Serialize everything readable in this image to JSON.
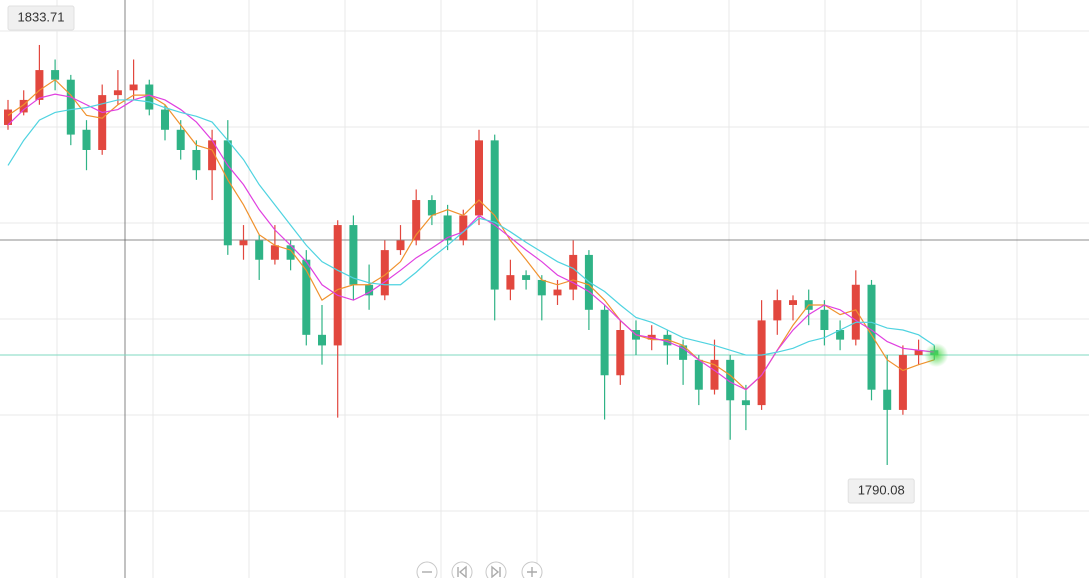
{
  "chart_data": {
    "type": "candlestick",
    "ylim": [
      1778.34,
      1838.38
    ],
    "grid": true,
    "up_color": "#e2473e",
    "down_color": "#2fb386",
    "open": [
      1825.4,
      1826.7,
      1828.0,
      1831.1,
      1830.1,
      1824.9,
      1822.8,
      1828.5,
      1829.0,
      1829.6,
      1827.0,
      1824.9,
      1822.8,
      1820.7,
      1823.8,
      1812.9,
      1813.4,
      1811.4,
      1812.9,
      1811.4,
      1803.6,
      1802.5,
      1815.0,
      1808.8,
      1807.7,
      1812.4,
      1813.4,
      1817.6,
      1816.0,
      1813.4,
      1816.0,
      1823.8,
      1808.3,
      1809.8,
      1809.3,
      1807.7,
      1808.3,
      1811.9,
      1806.2,
      1799.4,
      1804.1,
      1803.1,
      1803.6,
      1802.5,
      1801.0,
      1797.9,
      1801.0,
      1796.8,
      1796.3,
      1805.1,
      1806.7,
      1807.2,
      1806.2,
      1804.1,
      1803.1,
      1808.8,
      1797.9,
      1795.8,
      1801.5,
      1802.0
    ],
    "high": [
      1828.0,
      1829.0,
      1833.71,
      1832.2,
      1830.6,
      1825.9,
      1829.6,
      1831.1,
      1832.2,
      1830.1,
      1827.5,
      1825.9,
      1823.8,
      1824.9,
      1825.9,
      1815.0,
      1814.0,
      1815.0,
      1813.4,
      1812.4,
      1806.7,
      1815.5,
      1816.0,
      1810.9,
      1813.4,
      1815.0,
      1818.7,
      1818.1,
      1817.1,
      1816.6,
      1824.9,
      1824.4,
      1811.4,
      1810.3,
      1809.8,
      1809.3,
      1813.4,
      1812.4,
      1806.7,
      1805.1,
      1805.1,
      1804.6,
      1804.1,
      1803.1,
      1801.5,
      1803.1,
      1801.5,
      1798.4,
      1807.2,
      1808.3,
      1807.7,
      1808.3,
      1807.2,
      1805.1,
      1810.3,
      1809.3,
      1801.5,
      1802.5,
      1803.1,
      1802.5
    ],
    "low": [
      1824.9,
      1826.4,
      1827.5,
      1829.0,
      1823.3,
      1820.7,
      1822.3,
      1827.5,
      1828.0,
      1826.4,
      1823.8,
      1821.8,
      1819.7,
      1817.6,
      1811.9,
      1811.4,
      1809.3,
      1810.9,
      1810.3,
      1802.5,
      1800.5,
      1795.0,
      1807.2,
      1806.2,
      1807.2,
      1811.9,
      1812.9,
      1815.0,
      1812.4,
      1812.9,
      1815.0,
      1805.1,
      1807.2,
      1808.3,
      1805.1,
      1806.7,
      1807.2,
      1804.1,
      1794.8,
      1798.4,
      1801.5,
      1802.0,
      1800.5,
      1798.4,
      1796.3,
      1797.4,
      1792.7,
      1793.7,
      1795.8,
      1803.6,
      1805.1,
      1804.6,
      1802.5,
      1802.0,
      1802.5,
      1796.8,
      1790.08,
      1795.3,
      1800.5,
      1801.0
    ],
    "close": [
      1827.0,
      1828.0,
      1831.1,
      1830.1,
      1824.4,
      1822.8,
      1828.5,
      1829.0,
      1829.6,
      1827.0,
      1824.9,
      1822.8,
      1820.7,
      1823.8,
      1812.9,
      1813.4,
      1811.4,
      1812.9,
      1811.4,
      1803.6,
      1802.5,
      1815.0,
      1808.8,
      1807.7,
      1812.4,
      1813.4,
      1817.6,
      1816.0,
      1813.4,
      1816.0,
      1823.8,
      1808.3,
      1809.8,
      1809.3,
      1807.7,
      1808.3,
      1811.9,
      1806.2,
      1799.4,
      1804.1,
      1803.1,
      1803.6,
      1802.5,
      1801.0,
      1797.9,
      1801.0,
      1796.8,
      1796.3,
      1805.1,
      1807.2,
      1807.2,
      1806.2,
      1804.1,
      1803.1,
      1808.8,
      1797.9,
      1795.8,
      1801.5,
      1802.0,
      1801.5
    ],
    "series": [
      {
        "color": "#f0922e",
        "values": [
          1826.4,
          1827.5,
          1829.0,
          1830.1,
          1828.5,
          1826.4,
          1826.1,
          1827.5,
          1828.5,
          1828.5,
          1827.5,
          1825.4,
          1823.3,
          1822.8,
          1819.7,
          1817.1,
          1814.0,
          1812.9,
          1812.4,
          1810.3,
          1807.2,
          1808.3,
          1808.8,
          1808.8,
          1809.8,
          1811.2,
          1814.0,
          1816.0,
          1816.6,
          1816.0,
          1817.6,
          1816.0,
          1813.4,
          1811.4,
          1809.3,
          1808.8,
          1809.3,
          1808.8,
          1807.2,
          1805.1,
          1803.6,
          1803.1,
          1803.1,
          1802.5,
          1801.0,
          1800.5,
          1799.4,
          1797.9,
          1799.4,
          1802.0,
          1804.6,
          1806.7,
          1806.7,
          1805.7,
          1806.2,
          1803.6,
          1801.0,
          1799.9,
          1800.5,
          1801.0
        ]
      },
      {
        "color": "#e040e0",
        "values": [
          1825.4,
          1827.0,
          1828.2,
          1828.6,
          1828.3,
          1827.5,
          1826.7,
          1827.0,
          1828.0,
          1828.5,
          1828.0,
          1827.0,
          1825.7,
          1823.8,
          1821.2,
          1819.2,
          1816.6,
          1814.5,
          1812.9,
          1811.2,
          1808.8,
          1807.7,
          1807.2,
          1808.0,
          1809.1,
          1810.3,
          1811.6,
          1812.6,
          1813.7,
          1814.3,
          1816.0,
          1815.0,
          1813.7,
          1812.4,
          1811.2,
          1809.8,
          1809.0,
          1808.1,
          1806.7,
          1805.1,
          1803.6,
          1803.3,
          1802.9,
          1802.2,
          1801.0,
          1799.9,
          1798.7,
          1797.9,
          1799.4,
          1802.0,
          1804.1,
          1805.7,
          1806.7,
          1806.2,
          1805.1,
          1804.1,
          1802.9,
          1802.2,
          1802.0,
          1801.8
        ]
      },
      {
        "color": "#4fd3e0",
        "values": [
          1821.2,
          1823.8,
          1825.9,
          1826.7,
          1827.0,
          1827.2,
          1827.6,
          1828.0,
          1828.0,
          1827.8,
          1827.2,
          1826.7,
          1826.3,
          1825.7,
          1823.8,
          1821.8,
          1819.2,
          1817.1,
          1815.0,
          1812.9,
          1811.2,
          1810.3,
          1809.5,
          1809.0,
          1808.8,
          1808.8,
          1810.1,
          1811.6,
          1812.9,
          1814.3,
          1815.7,
          1815.3,
          1814.3,
          1813.2,
          1812.2,
          1811.2,
          1810.5,
          1809.1,
          1808.1,
          1806.7,
          1805.4,
          1804.9,
          1804.1,
          1803.3,
          1802.9,
          1802.5,
          1802.0,
          1801.5,
          1801.5,
          1801.8,
          1802.2,
          1802.9,
          1803.3,
          1804.1,
          1804.9,
          1804.9,
          1804.3,
          1804.1,
          1803.6,
          1802.5
        ]
      }
    ]
  }
}
